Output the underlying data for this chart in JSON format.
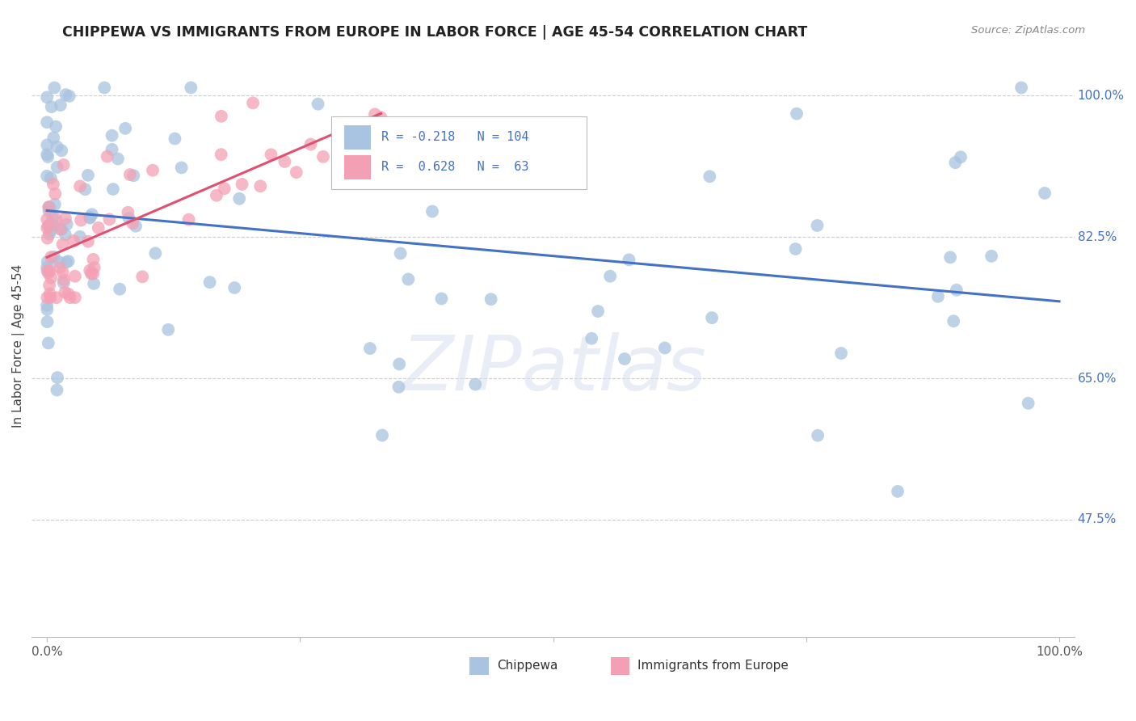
{
  "title": "CHIPPEWA VS IMMIGRANTS FROM EUROPE IN LABOR FORCE | AGE 45-54 CORRELATION CHART",
  "source": "Source: ZipAtlas.com",
  "ylabel": "In Labor Force | Age 45-54",
  "ytick_labels": [
    "100.0%",
    "82.5%",
    "65.0%",
    "47.5%"
  ],
  "ytick_values": [
    1.0,
    0.825,
    0.65,
    0.475
  ],
  "xlim": [
    0.0,
    1.0
  ],
  "ylim": [
    0.33,
    1.05
  ],
  "chippewa_color": "#a8c4e0",
  "europe_color": "#f4a0b4",
  "chippewa_line_color": "#4472c4",
  "europe_line_color": "#e05070",
  "R_chippewa": -0.218,
  "N_chippewa": 104,
  "R_europe": 0.628,
  "N_europe": 63,
  "watermark_text": "ZIPatlas",
  "bottom_label_chippewa": "Chippewa",
  "bottom_label_europe": "Immigrants from Europe"
}
